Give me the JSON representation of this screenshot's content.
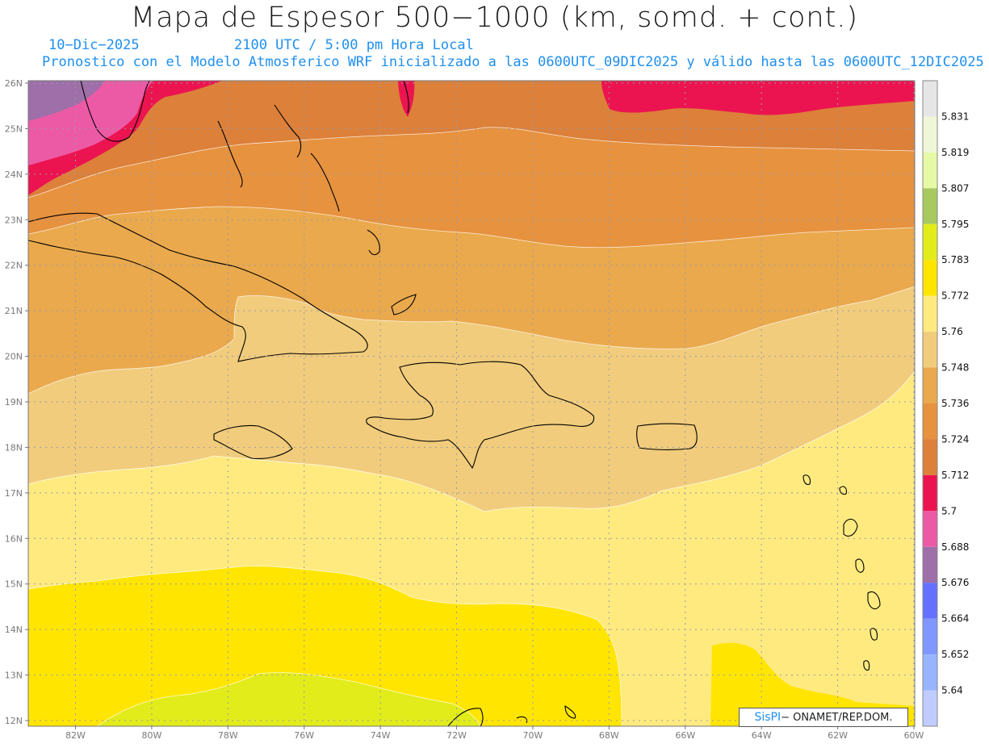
{
  "title": "Mapa de Espesor 500−1000 (km, somd. + cont.)",
  "date": "10−Dic−2025",
  "utc_local": "2100 UTC / 5:00 pm Hora Local",
  "description": "Pronostico con el Modelo Atmosferico WRF inicializado a las 0600UTC_09DIC2025 y válido hasta las  0600UTC_12DIC2025",
  "badge": {
    "brand": "SisPI",
    "rest": "− ONAMET/REP.DOM."
  },
  "lat_labels": [
    "26N",
    "25N",
    "24N",
    "23N",
    "22N",
    "21N",
    "20N",
    "19N",
    "18N",
    "17N",
    "16N",
    "15N",
    "14N",
    "13N",
    "12N"
  ],
  "lon_labels": [
    "82W",
    "80W",
    "78W",
    "76W",
    "74W",
    "72W",
    "70W",
    "68W",
    "66W",
    "64W",
    "62W",
    "60W"
  ],
  "legend": {
    "colors": [
      "#c0ccff",
      "#98b4ff",
      "#7f97ff",
      "#6470ff",
      "#9e6fa8",
      "#ec5aa6",
      "#ec1450",
      "#dc803a",
      "#e7923f",
      "#eaa94d",
      "#f1cc7c",
      "#ffea80",
      "#ffe500",
      "#e2ec1b",
      "#a7c960",
      "#e6f9a6",
      "#eff7d8",
      "#e6e6e6"
    ],
    "labels": [
      "5.64",
      "5.652",
      "5.664",
      "5.676",
      "5.688",
      "5.7",
      "5.712",
      "5.724",
      "5.736",
      "5.748",
      "5.76",
      "5.772",
      "5.783",
      "5.795",
      "5.807",
      "5.819",
      "5.831"
    ]
  },
  "map_colors": {
    "purple": "#9e6fa8",
    "pink": "#ec5aa6",
    "red": "#ec1450",
    "orange_dark": "#dc803a",
    "orange": "#e7923f",
    "orange_light": "#eaa94d",
    "tan": "#f1cc7c",
    "yellow_light": "#ffea80",
    "yellow": "#ffe500",
    "lime": "#e2ec1b"
  }
}
